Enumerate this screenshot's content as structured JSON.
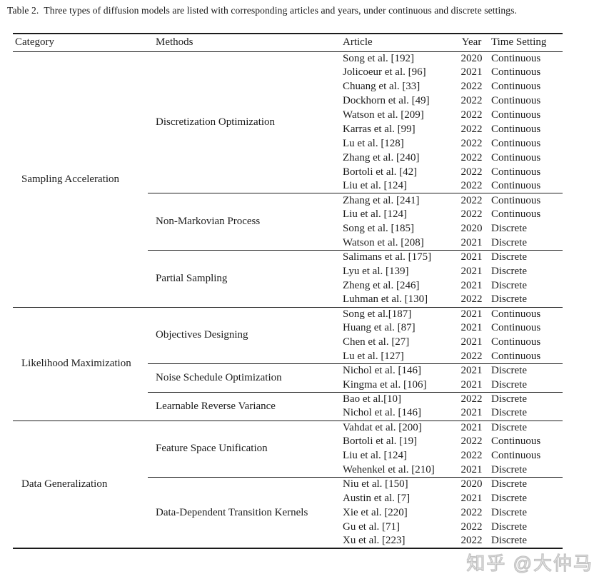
{
  "caption": {
    "label": "Table 2.",
    "text": "Three types of diffusion models are listed with corresponding articles and years, under continuous and discrete settings."
  },
  "watermark": {
    "text": "知乎 @大仲马",
    "color": "#c3c3c3"
  },
  "table": {
    "headers": [
      "Category",
      "Methods",
      "Article",
      "Year",
      "Time Setting"
    ],
    "categories": [
      {
        "name": "Sampling Acceleration",
        "methods": [
          {
            "name": "Discretization Optimization",
            "rows": [
              {
                "article": "Song et al. [192]",
                "year": "2020",
                "time_setting": "Continuous"
              },
              {
                "article": "Jolicoeur et al. [96]",
                "year": "2021",
                "time_setting": "Continuous"
              },
              {
                "article": "Chuang et al. [33]",
                "year": "2022",
                "time_setting": "Continuous"
              },
              {
                "article": "Dockhorn et al. [49]",
                "year": "2022",
                "time_setting": "Continuous"
              },
              {
                "article": "Watson et al. [209]",
                "year": "2022",
                "time_setting": "Continuous"
              },
              {
                "article": "Karras et al. [99]",
                "year": "2022",
                "time_setting": "Continuous"
              },
              {
                "article": "Lu et al. [128]",
                "year": "2022",
                "time_setting": "Continuous"
              },
              {
                "article": "Zhang et al. [240]",
                "year": "2022",
                "time_setting": "Continuous"
              },
              {
                "article": "Bortoli et al. [42]",
                "year": "2022",
                "time_setting": "Continuous"
              },
              {
                "article": "Liu et al. [124]",
                "year": "2022",
                "time_setting": "Continuous"
              }
            ]
          },
          {
            "name": "Non-Markovian Process",
            "rows": [
              {
                "article": "Zhang et al. [241]",
                "year": "2022",
                "time_setting": "Continuous"
              },
              {
                "article": "Liu et al. [124]",
                "year": "2022",
                "time_setting": "Continuous"
              },
              {
                "article": "Song et al. [185]",
                "year": "2020",
                "time_setting": "Discrete"
              },
              {
                "article": "Watson et al. [208]",
                "year": "2021",
                "time_setting": "Discrete"
              }
            ]
          },
          {
            "name": "Partial Sampling",
            "rows": [
              {
                "article": "Salimans et al. [175]",
                "year": "2021",
                "time_setting": "Discrete"
              },
              {
                "article": "Lyu et al. [139]",
                "year": "2021",
                "time_setting": "Discrete"
              },
              {
                "article": "Zheng et al. [246]",
                "year": "2021",
                "time_setting": "Discrete"
              },
              {
                "article": "Luhman et al. [130]",
                "year": "2022",
                "time_setting": "Discrete"
              }
            ]
          }
        ]
      },
      {
        "name": "Likelihood Maximization",
        "methods": [
          {
            "name": "Objectives Designing",
            "rows": [
              {
                "article": "Song et al.[187]",
                "year": "2021",
                "time_setting": "Continuous"
              },
              {
                "article": "Huang et al. [87]",
                "year": "2021",
                "time_setting": "Continuous"
              },
              {
                "article": "Chen et al. [27]",
                "year": "2021",
                "time_setting": "Continuous"
              },
              {
                "article": "Lu et al. [127]",
                "year": "2022",
                "time_setting": "Continuous"
              }
            ]
          },
          {
            "name": "Noise Schedule Optimization",
            "rows": [
              {
                "article": "Nichol et al. [146]",
                "year": "2021",
                "time_setting": "Discrete"
              },
              {
                "article": "Kingma et al. [106]",
                "year": "2021",
                "time_setting": "Discrete"
              }
            ]
          },
          {
            "name": "Learnable Reverse Variance",
            "rows": [
              {
                "article": "Bao et al.[10]",
                "year": "2022",
                "time_setting": "Discrete"
              },
              {
                "article": "Nichol et al. [146]",
                "year": "2021",
                "time_setting": "Discrete"
              }
            ]
          }
        ]
      },
      {
        "name": "Data Generalization",
        "methods": [
          {
            "name": "Feature Space Unification",
            "rows": [
              {
                "article": "Vahdat et al. [200]",
                "year": "2021",
                "time_setting": "Discrete"
              },
              {
                "article": "Bortoli et al. [19]",
                "year": "2022",
                "time_setting": "Continuous"
              },
              {
                "article": "Liu et al. [124]",
                "year": "2022",
                "time_setting": "Continuous"
              },
              {
                "article": "Wehenkel et al. [210]",
                "year": "2021",
                "time_setting": "Discrete"
              }
            ]
          },
          {
            "name": "Data-Dependent Transition Kernels",
            "rows": [
              {
                "article": "Niu et al. [150]",
                "year": "2020",
                "time_setting": "Discrete"
              },
              {
                "article": "Austin et al. [7]",
                "year": "2021",
                "time_setting": "Discrete"
              },
              {
                "article": "Xie et al. [220]",
                "year": "2022",
                "time_setting": "Discrete"
              },
              {
                "article": "Gu et al. [71]",
                "year": "2022",
                "time_setting": "Discrete"
              },
              {
                "article": "Xu et al. [223]",
                "year": "2022",
                "time_setting": "Discrete"
              }
            ]
          }
        ]
      }
    ]
  }
}
